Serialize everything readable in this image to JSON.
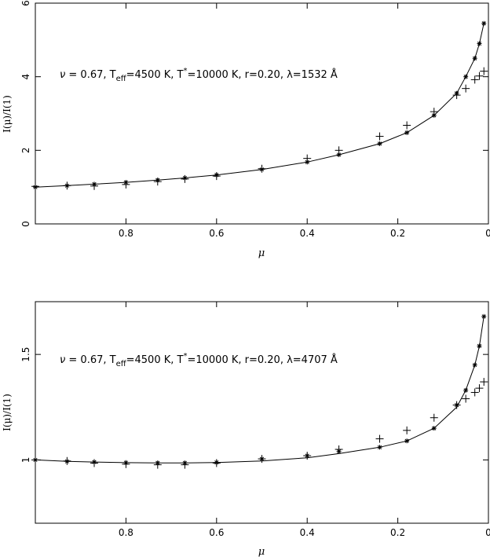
{
  "chart_data": [
    {
      "type": "scatter",
      "title": "",
      "annotation": "ν = 0.67, T_eff=4500 K, T*=10000 K, r=0.20, λ=1532 Å",
      "annotation_parts": {
        "nu": "ν",
        "a1": " = 0.67, T",
        "sub_eff": "eff",
        "a2": "=4500 K, T",
        "sup_star": "*",
        "a3": "=10000 K, r=0.20, λ=1532 Å"
      },
      "xlabel": "μ",
      "ylabel": "I(μ)/I(1)",
      "xlim": [
        1.0,
        0.0
      ],
      "ylim": [
        0,
        6
      ],
      "xticks": [
        0.8,
        0.6,
        0.4,
        0.2,
        0
      ],
      "xtick_labels": [
        "0.8",
        "0.6",
        "0.4",
        "0.2",
        "0"
      ],
      "yticks": [
        0,
        2,
        4,
        6
      ],
      "ytick_labels": [
        "0",
        "2",
        "4",
        "6"
      ],
      "grid": false,
      "series": [
        {
          "marker": "line",
          "x": [
            1.0,
            0.93,
            0.87,
            0.8,
            0.73,
            0.67,
            0.6,
            0.5,
            0.4,
            0.33,
            0.24,
            0.18,
            0.12,
            0.07,
            0.05,
            0.03,
            0.02,
            0.01
          ],
          "y": [
            1.0,
            1.04,
            1.08,
            1.13,
            1.19,
            1.25,
            1.33,
            1.48,
            1.68,
            1.88,
            2.18,
            2.48,
            2.95,
            3.55,
            4.0,
            4.5,
            4.9,
            5.45
          ]
        },
        {
          "marker": "asterisk",
          "x": [
            1.0,
            0.93,
            0.87,
            0.8,
            0.73,
            0.67,
            0.6,
            0.5,
            0.4,
            0.33,
            0.24,
            0.18,
            0.12,
            0.07,
            0.05,
            0.03,
            0.02,
            0.01
          ],
          "y": [
            1.0,
            1.04,
            1.08,
            1.13,
            1.19,
            1.25,
            1.33,
            1.48,
            1.68,
            1.88,
            2.18,
            2.48,
            2.95,
            3.55,
            4.0,
            4.5,
            4.9,
            5.45
          ]
        },
        {
          "marker": "plus",
          "x": [
            1.0,
            0.93,
            0.87,
            0.8,
            0.73,
            0.67,
            0.6,
            0.5,
            0.4,
            0.33,
            0.24,
            0.18,
            0.12,
            0.07,
            0.05,
            0.03,
            0.02,
            0.01
          ],
          "y": [
            1.02,
            1.04,
            1.03,
            1.07,
            1.15,
            1.22,
            1.3,
            1.5,
            1.78,
            2.0,
            2.38,
            2.68,
            3.05,
            3.5,
            3.68,
            3.92,
            4.02,
            4.15
          ]
        }
      ]
    },
    {
      "type": "scatter",
      "title": "",
      "annotation": "ν = 0.67, T_eff=4500 K, T*=10000 K, r=0.20, λ=4707 Å",
      "annotation_parts": {
        "nu": "ν",
        "a1": " = 0.67, T",
        "sub_eff": "eff",
        "a2": "=4500 K, T",
        "sup_star": "*",
        "a3": "=10000 K, r=0.20, λ=4707 Å"
      },
      "xlabel": "μ",
      "ylabel": "I(μ)/I(1)",
      "xlim": [
        1.0,
        0.0
      ],
      "ylim": [
        0.7,
        1.75
      ],
      "xticks": [
        0.8,
        0.6,
        0.4,
        0.2,
        0
      ],
      "xtick_labels": [
        "0.8",
        "0.6",
        "0.4",
        "0.2",
        "0"
      ],
      "yticks": [
        1,
        1.5
      ],
      "ytick_labels": [
        "1",
        "1.5"
      ],
      "grid": false,
      "series": [
        {
          "marker": "line",
          "x": [
            1.0,
            0.93,
            0.87,
            0.8,
            0.73,
            0.67,
            0.6,
            0.5,
            0.4,
            0.33,
            0.24,
            0.18,
            0.12,
            0.07,
            0.05,
            0.03,
            0.02,
            0.01
          ],
          "y": [
            1.0,
            0.993,
            0.99,
            0.987,
            0.986,
            0.986,
            0.988,
            0.995,
            1.01,
            1.03,
            1.06,
            1.09,
            1.15,
            1.25,
            1.33,
            1.45,
            1.54,
            1.68
          ]
        },
        {
          "marker": "asterisk",
          "x": [
            1.0,
            0.93,
            0.87,
            0.8,
            0.73,
            0.67,
            0.6,
            0.5,
            0.4,
            0.33,
            0.24,
            0.18,
            0.12,
            0.07,
            0.05,
            0.03,
            0.02,
            0.01
          ],
          "y": [
            1.0,
            0.993,
            0.99,
            0.987,
            0.986,
            0.986,
            0.988,
            1.005,
            1.02,
            1.04,
            1.06,
            1.09,
            1.15,
            1.26,
            1.33,
            1.45,
            1.54,
            1.68
          ]
        },
        {
          "marker": "plus",
          "x": [
            1.0,
            0.93,
            0.87,
            0.8,
            0.73,
            0.67,
            0.6,
            0.5,
            0.4,
            0.33,
            0.24,
            0.18,
            0.12,
            0.07,
            0.05,
            0.03,
            0.02,
            0.01
          ],
          "y": [
            1.0,
            0.995,
            0.985,
            0.98,
            0.977,
            0.977,
            0.985,
            1.005,
            1.02,
            1.05,
            1.1,
            1.14,
            1.2,
            1.26,
            1.29,
            1.32,
            1.34,
            1.37
          ]
        }
      ]
    }
  ]
}
